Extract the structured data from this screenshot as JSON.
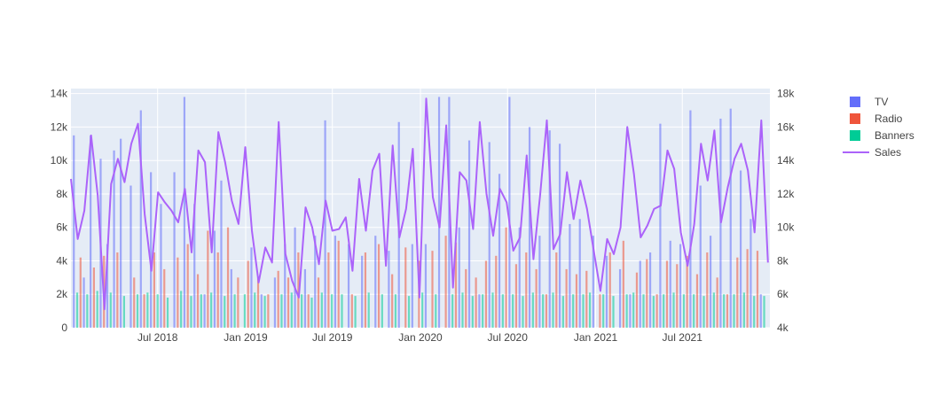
{
  "chart_data": {
    "type": "bar",
    "secondary_type": "line",
    "title": "",
    "xlabel": "",
    "ylabel": "",
    "y2label": "",
    "x_ticks": [
      "Jul 2018",
      "Jan 2019",
      "Jul 2019",
      "Jan 2020",
      "Jul 2020",
      "Jan 2021",
      "Jul 2021"
    ],
    "y_ticks": [
      "0",
      "2k",
      "4k",
      "6k",
      "8k",
      "10k",
      "12k",
      "14k"
    ],
    "y2_ticks": [
      "4k",
      "6k",
      "8k",
      "10k",
      "12k",
      "14k",
      "16k",
      "18k"
    ],
    "ylim": [
      0,
      14300
    ],
    "y2lim": [
      4000,
      18300
    ],
    "xlim": [
      "2018-01-01",
      "2021-12-31"
    ],
    "grid": true,
    "legend_position": "top-right",
    "colors": {
      "TV": "#636efa",
      "Radio": "#ef553b",
      "Banners": "#00cc96",
      "Sales": "#ab63fa",
      "plot_bg": "#e5ecf6"
    },
    "series": [
      {
        "name": "TV",
        "kind": "bar",
        "axis": "y",
        "x": [
          "2018-01-07",
          "2018-01-28",
          "2018-02-11",
          "2018-03-04",
          "2018-03-18",
          "2018-04-01",
          "2018-04-15",
          "2018-05-06",
          "2018-05-27",
          "2018-06-17",
          "2018-07-08",
          "2018-08-05",
          "2018-08-26",
          "2018-09-16",
          "2018-10-07",
          "2018-10-28",
          "2018-11-11",
          "2018-12-02",
          "2019-01-13",
          "2019-02-03",
          "2019-03-03",
          "2019-03-24",
          "2019-04-14",
          "2019-05-05",
          "2019-05-26",
          "2019-06-16",
          "2019-07-07",
          "2019-08-04",
          "2019-09-01",
          "2019-09-29",
          "2019-10-27",
          "2019-11-17",
          "2019-12-15",
          "2020-01-12",
          "2020-02-09",
          "2020-03-01",
          "2020-03-22",
          "2020-04-12",
          "2020-05-03",
          "2020-05-24",
          "2020-06-14",
          "2020-07-05",
          "2020-07-26",
          "2020-08-16",
          "2020-09-06",
          "2020-09-27",
          "2020-10-18",
          "2020-11-08",
          "2020-11-29",
          "2020-12-27",
          "2021-01-24",
          "2021-02-21",
          "2021-03-14",
          "2021-04-04",
          "2021-04-25",
          "2021-05-16",
          "2021-06-06",
          "2021-06-27",
          "2021-07-18",
          "2021-08-08",
          "2021-08-29",
          "2021-09-19",
          "2021-10-10",
          "2021-10-31",
          "2021-11-21",
          "2021-12-12"
        ],
        "values": [
          11500,
          3000,
          11500,
          10100,
          5000,
          10600,
          11300,
          8500,
          13000,
          9300,
          7400,
          9300,
          13800,
          7400,
          2000,
          5800,
          8800,
          3500,
          4800,
          2000,
          3000,
          5000,
          6000,
          3500,
          5500,
          12400,
          5500,
          5000,
          4300,
          5500,
          4600,
          12300,
          5000,
          5000,
          13800,
          13800,
          6000,
          11200,
          2000,
          11100,
          9200,
          13800,
          6000,
          12000,
          5500,
          11800,
          11000,
          6200,
          6500,
          5500,
          4300,
          3500,
          2000,
          4000,
          4500,
          12200,
          5200,
          5000,
          13000,
          8500,
          5500,
          12500,
          13100,
          9400,
          6500,
          2000
        ]
      },
      {
        "name": "Radio",
        "kind": "bar",
        "axis": "y",
        "x": [
          "2018-01-21",
          "2018-02-18",
          "2018-03-11",
          "2018-04-08",
          "2018-05-13",
          "2018-06-03",
          "2018-06-24",
          "2018-07-15",
          "2018-08-12",
          "2018-09-02",
          "2018-09-23",
          "2018-10-14",
          "2018-11-04",
          "2018-11-25",
          "2018-12-16",
          "2019-01-06",
          "2019-01-27",
          "2019-02-17",
          "2019-03-10",
          "2019-03-31",
          "2019-04-21",
          "2019-05-12",
          "2019-06-02",
          "2019-06-23",
          "2019-07-14",
          "2019-08-11",
          "2019-09-08",
          "2019-10-06",
          "2019-11-03",
          "2019-12-01",
          "2019-12-29",
          "2020-01-26",
          "2020-02-23",
          "2020-03-15",
          "2020-04-05",
          "2020-04-26",
          "2020-05-17",
          "2020-06-07",
          "2020-06-28",
          "2020-07-19",
          "2020-08-09",
          "2020-08-30",
          "2020-09-20",
          "2020-10-11",
          "2020-11-01",
          "2020-11-22",
          "2020-12-13",
          "2021-01-10",
          "2021-01-31",
          "2021-02-28",
          "2021-03-28",
          "2021-04-18",
          "2021-05-09",
          "2021-05-30",
          "2021-06-20",
          "2021-07-11",
          "2021-08-01",
          "2021-08-22",
          "2021-09-12",
          "2021-10-03",
          "2021-10-24",
          "2021-11-14",
          "2021-12-05"
        ],
        "values": [
          4200,
          3600,
          4300,
          4500,
          3000,
          2000,
          4500,
          3500,
          4200,
          5000,
          3200,
          5800,
          4500,
          6000,
          3000,
          4000,
          3000,
          2000,
          3400,
          3000,
          4500,
          2000,
          3000,
          4500,
          5200,
          2000,
          4500,
          5000,
          3200,
          4800,
          4000,
          4600,
          5500,
          5100,
          3500,
          3000,
          4000,
          4300,
          6000,
          3800,
          4500,
          3500,
          2000,
          4500,
          3500,
          3200,
          3400,
          2000,
          4500,
          5200,
          3300,
          4100,
          2000,
          4000,
          3800,
          4300,
          3200,
          4500,
          3000,
          2000,
          4200,
          4700,
          4600
        ]
      },
      {
        "name": "Banners",
        "kind": "bar",
        "axis": "y",
        "x": [
          "2018-01-14",
          "2018-02-04",
          "2018-02-25",
          "2018-03-25",
          "2018-04-22",
          "2018-05-20",
          "2018-06-10",
          "2018-07-01",
          "2018-07-22",
          "2018-08-19",
          "2018-09-09",
          "2018-09-30",
          "2018-10-21",
          "2018-11-18",
          "2018-12-09",
          "2018-12-30",
          "2019-01-20",
          "2019-02-10",
          "2019-03-17",
          "2019-04-07",
          "2019-04-28",
          "2019-05-19",
          "2019-06-09",
          "2019-06-30",
          "2019-07-21",
          "2019-08-18",
          "2019-09-15",
          "2019-10-13",
          "2019-11-10",
          "2019-12-08",
          "2020-01-05",
          "2020-02-02",
          "2020-03-08",
          "2020-03-29",
          "2020-04-19",
          "2020-05-10",
          "2020-05-31",
          "2020-06-21",
          "2020-07-12",
          "2020-08-02",
          "2020-08-23",
          "2020-09-13",
          "2020-10-04",
          "2020-10-25",
          "2020-11-15",
          "2020-12-06",
          "2020-12-20",
          "2021-01-17",
          "2021-02-07",
          "2021-03-07",
          "2021-03-21",
          "2021-04-11",
          "2021-05-02",
          "2021-05-23",
          "2021-06-13",
          "2021-07-04",
          "2021-07-25",
          "2021-08-15",
          "2021-09-05",
          "2021-09-26",
          "2021-10-17",
          "2021-11-07",
          "2021-11-28",
          "2021-12-19"
        ],
        "values": [
          2100,
          2000,
          2200,
          2100,
          1900,
          2000,
          2100,
          2000,
          1800,
          2200,
          1900,
          2000,
          2100,
          1900,
          2000,
          2000,
          2100,
          1900,
          2000,
          2100,
          2000,
          1800,
          2100,
          2000,
          2000,
          1900,
          2100,
          2000,
          2000,
          1900,
          2100,
          2000,
          2000,
          2100,
          1900,
          2000,
          2100,
          2000,
          2000,
          1900,
          2100,
          2000,
          2100,
          1900,
          2000,
          2000,
          2100,
          2000,
          1900,
          2000,
          2100,
          2000,
          1900,
          2000,
          2100,
          2000,
          2000,
          1900,
          2100,
          2000,
          2000,
          2100,
          1900,
          1900
        ]
      },
      {
        "name": "Sales",
        "kind": "line",
        "axis": "y2",
        "x": [
          "2018-01-01",
          "2018-01-15",
          "2018-01-29",
          "2018-02-12",
          "2018-02-26",
          "2018-03-12",
          "2018-03-26",
          "2018-04-09",
          "2018-04-23",
          "2018-05-07",
          "2018-05-21",
          "2018-06-04",
          "2018-06-18",
          "2018-07-02",
          "2018-07-16",
          "2018-07-30",
          "2018-08-13",
          "2018-08-27",
          "2018-09-10",
          "2018-09-24",
          "2018-10-08",
          "2018-10-22",
          "2018-11-05",
          "2018-11-19",
          "2018-12-03",
          "2018-12-17",
          "2018-12-31",
          "2019-01-14",
          "2019-01-28",
          "2019-02-11",
          "2019-02-25",
          "2019-03-11",
          "2019-03-25",
          "2019-04-08",
          "2019-04-22",
          "2019-05-06",
          "2019-05-20",
          "2019-06-03",
          "2019-06-17",
          "2019-07-01",
          "2019-07-15",
          "2019-07-29",
          "2019-08-12",
          "2019-08-26",
          "2019-09-09",
          "2019-09-23",
          "2019-10-07",
          "2019-10-21",
          "2019-11-04",
          "2019-11-18",
          "2019-12-02",
          "2019-12-16",
          "2019-12-30",
          "2020-01-13",
          "2020-01-27",
          "2020-02-10",
          "2020-02-24",
          "2020-03-09",
          "2020-03-23",
          "2020-04-06",
          "2020-04-20",
          "2020-05-04",
          "2020-05-18",
          "2020-06-01",
          "2020-06-15",
          "2020-06-29",
          "2020-07-13",
          "2020-07-27",
          "2020-08-10",
          "2020-08-24",
          "2020-09-07",
          "2020-09-21",
          "2020-10-05",
          "2020-10-19",
          "2020-11-02",
          "2020-11-16",
          "2020-11-30",
          "2020-12-14",
          "2020-12-28",
          "2021-01-11",
          "2021-01-25",
          "2021-02-08",
          "2021-02-22",
          "2021-03-08",
          "2021-03-22",
          "2021-04-05",
          "2021-04-19",
          "2021-05-03",
          "2021-05-17",
          "2021-05-31",
          "2021-06-14",
          "2021-06-28",
          "2021-07-12",
          "2021-07-26",
          "2021-08-09",
          "2021-08-23",
          "2021-09-06",
          "2021-09-20",
          "2021-10-04",
          "2021-10-18",
          "2021-11-01",
          "2021-11-15",
          "2021-11-29",
          "2021-12-13",
          "2021-12-27"
        ],
        "values": [
          12900,
          9300,
          11000,
          15500,
          11900,
          5100,
          12600,
          14100,
          12700,
          15000,
          16200,
          10800,
          7400,
          12100,
          11500,
          11000,
          10300,
          12300,
          8500,
          14600,
          13900,
          8500,
          15700,
          13900,
          11600,
          10200,
          14800,
          9800,
          6700,
          8800,
          7900,
          16300,
          8400,
          6800,
          5800,
          11200,
          10000,
          7800,
          11600,
          9800,
          9900,
          10600,
          7400,
          12900,
          9800,
          13400,
          14400,
          7700,
          14900,
          9400,
          11100,
          14700,
          5800,
          17700,
          11800,
          10000,
          16100,
          6400,
          13300,
          12800,
          9900,
          16300,
          12000,
          9500,
          12300,
          11500,
          8600,
          9400,
          14300,
          8100,
          11900,
          16400,
          8700,
          9600,
          13300,
          10500,
          12800,
          11100,
          8600,
          6200,
          9300,
          8400,
          10000,
          16000,
          13200,
          9400,
          10100,
          11100,
          11300,
          14600,
          13500,
          9700,
          7700,
          10200,
          15000,
          12800,
          15800,
          10300,
          12400,
          14100,
          15000,
          13400,
          9700,
          16400,
          7900
        ]
      }
    ]
  }
}
